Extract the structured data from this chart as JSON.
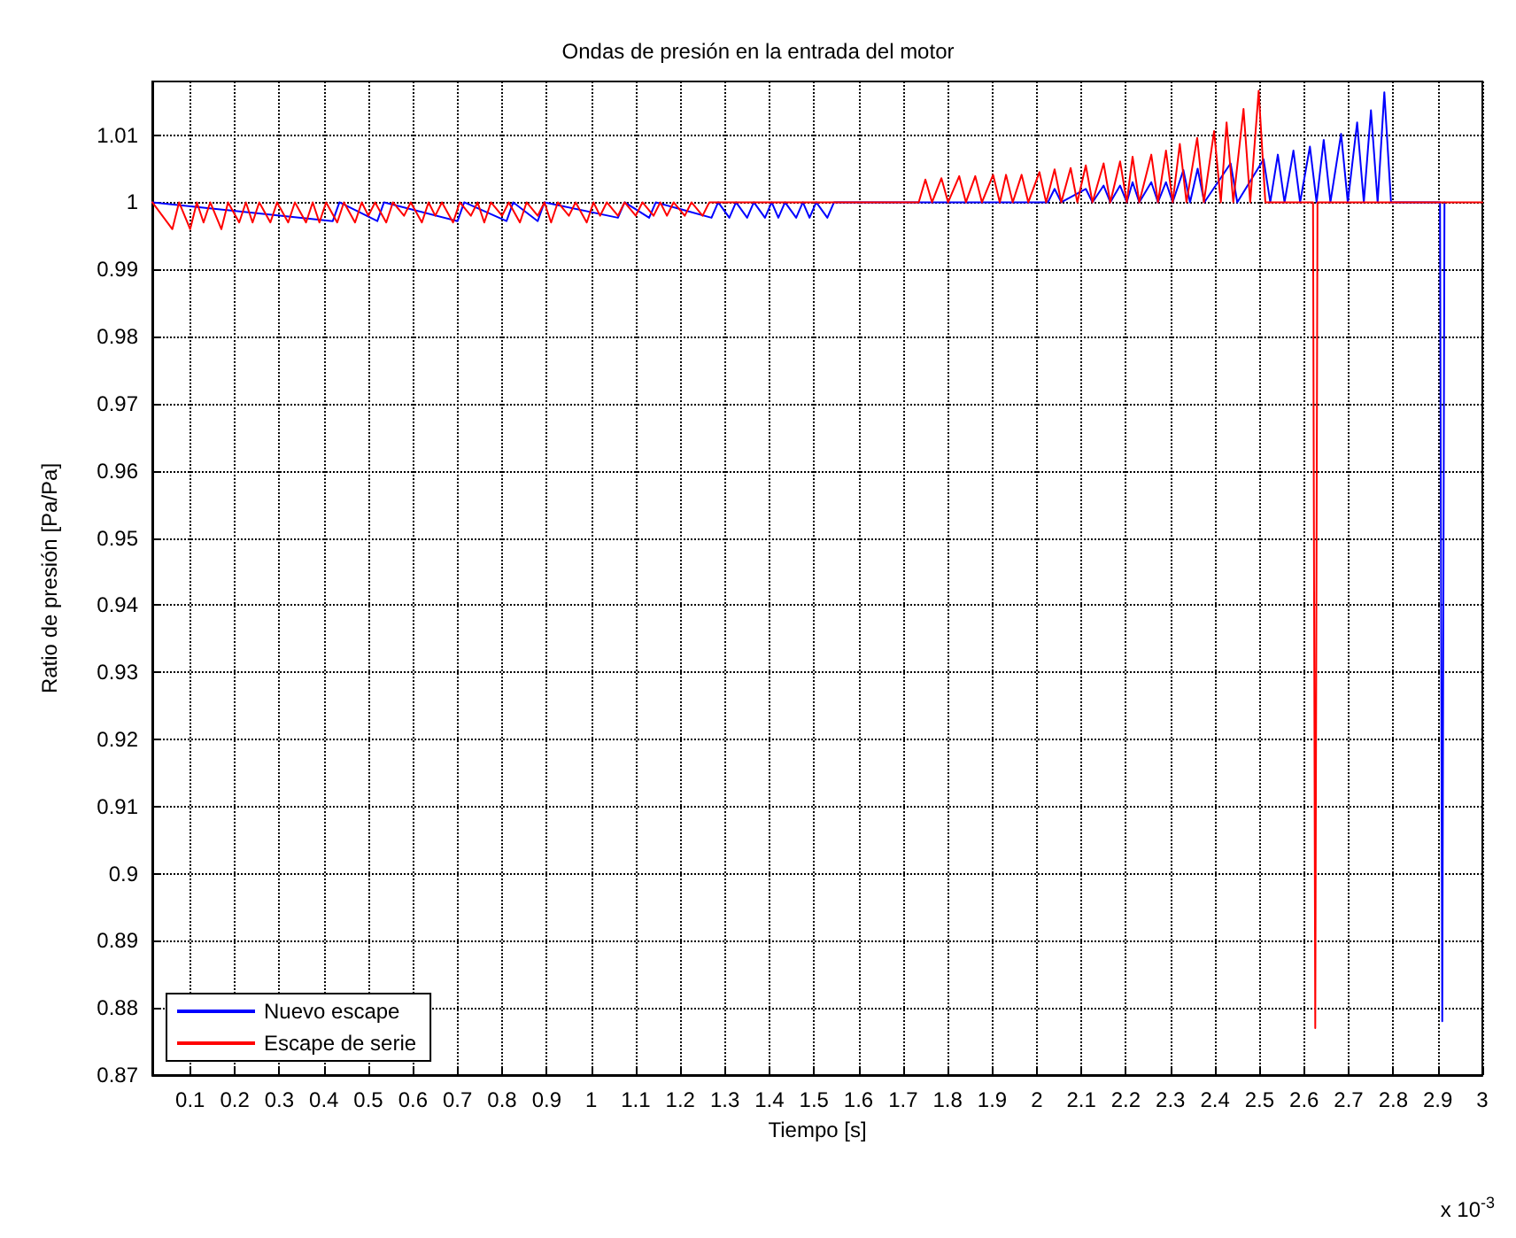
{
  "chart_data": {
    "type": "line",
    "title": "Ondas de presión en la entrada del motor",
    "xlabel": "Tiempo [s]",
    "ylabel": "Ratio de presión [Pa/Pa]",
    "annotations": [
      "x 10$^{-3}$"
    ],
    "xlim": [
      0.015,
      3
    ],
    "xticks": [
      0.1,
      0.2,
      0.3,
      0.4,
      0.5,
      0.6,
      0.7,
      0.8,
      0.9,
      1,
      1.1,
      1.2,
      1.3,
      1.4,
      1.5,
      1.6,
      1.7,
      1.8,
      1.9,
      2,
      2.1,
      2.2,
      2.3,
      2.4,
      2.5,
      2.6,
      2.7,
      2.8,
      2.9,
      3
    ],
    "ylim": [
      0.87,
      1.018
    ],
    "yticks": [
      0.87,
      0.88,
      0.89,
      0.9,
      0.91,
      0.92,
      0.93,
      0.94,
      0.95,
      0.96,
      0.97,
      0.98,
      0.99,
      1,
      1.01
    ],
    "grid": true,
    "legend": "bottom left",
    "marker": "none",
    "line_style": "solid",
    "series": [
      {
        "name": "Nuevo escape",
        "color": "#0000ff",
        "x": [
          0.015,
          0.42,
          0.435,
          0.52,
          0.535,
          0.7,
          0.715,
          0.81,
          0.825,
          0.88,
          0.895,
          1.06,
          1.075,
          1.13,
          1.145,
          1.27,
          1.285,
          1.31,
          1.325,
          1.35,
          1.365,
          1.39,
          1.405,
          1.42,
          1.435,
          1.46,
          1.475,
          1.49,
          1.505,
          1.53,
          1.545,
          2.025,
          2.04,
          2.055,
          2.11,
          2.125,
          2.15,
          2.165,
          2.187,
          2.202,
          2.215,
          2.23,
          2.257,
          2.272,
          2.29,
          2.305,
          2.329,
          2.344,
          2.361,
          2.376,
          2.435,
          2.45,
          2.509,
          2.524,
          2.541,
          2.556,
          2.576,
          2.591,
          2.613,
          2.628,
          2.644,
          2.659,
          2.683,
          2.698,
          2.719,
          2.734,
          2.75,
          2.765,
          2.78,
          2.795,
          2.905,
          2.91,
          2.915
        ],
        "values": [
          1,
          0.9972,
          1,
          0.9972,
          1,
          0.9972,
          1,
          0.9972,
          1,
          0.9972,
          1,
          0.9977,
          1,
          0.9977,
          1,
          0.9977,
          1,
          0.9977,
          1,
          0.9977,
          1,
          0.9977,
          1,
          0.9977,
          1,
          0.9977,
          1,
          0.9977,
          1,
          0.9977,
          1,
          1,
          1.002,
          1,
          1.002,
          1,
          1.0025,
          1,
          1.0025,
          1,
          1.003,
          1,
          1.003,
          1,
          1.003,
          1,
          1.0048,
          1,
          1.005,
          1,
          1.0058,
          1,
          1.0064,
          1,
          1.0071,
          1,
          1.0077,
          1,
          1.0083,
          1,
          1.0093,
          1,
          1.0102,
          1,
          1.0119,
          1,
          1.0137,
          1,
          1.0164,
          1,
          1,
          0.878,
          1
        ]
      },
      {
        "name": "Escape de serie",
        "color": "#ff0000",
        "x": [
          0.015,
          0.06,
          0.075,
          0.1,
          0.115,
          0.13,
          0.145,
          0.17,
          0.185,
          0.21,
          0.225,
          0.24,
          0.255,
          0.28,
          0.295,
          0.32,
          0.335,
          0.36,
          0.375,
          0.39,
          0.405,
          0.43,
          0.445,
          0.47,
          0.485,
          0.5,
          0.515,
          0.54,
          0.555,
          0.58,
          0.595,
          0.62,
          0.635,
          0.65,
          0.665,
          0.69,
          0.705,
          0.73,
          0.745,
          0.76,
          0.775,
          0.8,
          0.815,
          0.84,
          0.855,
          0.88,
          0.895,
          0.91,
          0.925,
          0.95,
          0.965,
          0.99,
          1.005,
          1.02,
          1.035,
          1.06,
          1.075,
          1.1,
          1.115,
          1.14,
          1.155,
          1.17,
          1.185,
          1.21,
          1.225,
          1.25,
          1.265,
          1.735,
          1.75,
          1.765,
          1.786,
          1.801,
          1.826,
          1.841,
          1.862,
          1.877,
          1.902,
          1.917,
          1.931,
          1.946,
          1.966,
          1.981,
          2.006,
          2.021,
          2.04,
          2.055,
          2.076,
          2.091,
          2.11,
          2.125,
          2.15,
          2.165,
          2.187,
          2.202,
          2.215,
          2.23,
          2.257,
          2.272,
          2.29,
          2.305,
          2.321,
          2.336,
          2.36,
          2.375,
          2.398,
          2.413,
          2.426,
          2.441,
          2.464,
          2.479,
          2.498,
          2.513,
          2.62,
          2.625,
          2.63,
          3
        ],
        "values": [
          1,
          0.996,
          1,
          0.996,
          1,
          0.997,
          1,
          0.996,
          1,
          0.997,
          1,
          0.997,
          1,
          0.997,
          1,
          0.997,
          1,
          0.997,
          1,
          0.997,
          1,
          0.997,
          1,
          0.997,
          1,
          0.998,
          1,
          0.997,
          1,
          0.998,
          1,
          0.997,
          1,
          0.998,
          1,
          0.997,
          1,
          0.998,
          1,
          0.997,
          1,
          0.998,
          1,
          0.997,
          1,
          0.998,
          1,
          0.997,
          1,
          0.998,
          1,
          0.997,
          1,
          0.998,
          1,
          0.998,
          1,
          0.998,
          1,
          0.998,
          1,
          0.998,
          1,
          0.998,
          1,
          0.998,
          1,
          1,
          1.0034,
          1,
          1.0036,
          1,
          1.0039,
          1,
          1.0039,
          1,
          1.0041,
          1,
          1.0041,
          1,
          1.0041,
          1,
          1.0045,
          1,
          1.0049,
          1,
          1.0051,
          1,
          1.0055,
          1,
          1.0058,
          1,
          1.0061,
          1,
          1.0068,
          1,
          1.0071,
          1,
          1.0077,
          1,
          1.0087,
          1,
          1.0096,
          1,
          1.0106,
          1,
          1.0119,
          1,
          1.0139,
          1,
          1.0166,
          1,
          1,
          0.877,
          1,
          1
        ]
      }
    ]
  }
}
